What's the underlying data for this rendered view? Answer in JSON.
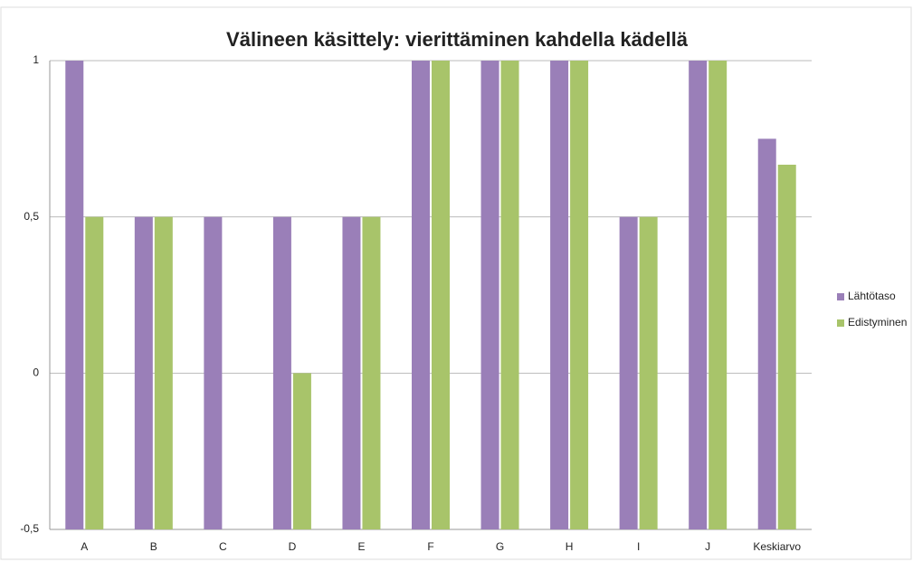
{
  "chart_data": {
    "type": "bar",
    "title": "Välineen käsittely: vierittäminen kahdella kädellä",
    "categories": [
      "A",
      "B",
      "C",
      "D",
      "E",
      "F",
      "G",
      "H",
      "I",
      "J",
      "Keskiarvo"
    ],
    "series": [
      {
        "name": "Lähtötaso",
        "color": "#9a7fb8",
        "values": [
          1,
          0.5,
          0.5,
          0.5,
          0.5,
          1,
          1,
          1,
          0.5,
          1,
          0.75
        ]
      },
      {
        "name": "Edistyminen",
        "color": "#a8c46a",
        "values": [
          0.5,
          0.5,
          null,
          0,
          0.5,
          1,
          1,
          1,
          0.5,
          1,
          0.667
        ]
      }
    ],
    "ylim": [
      -0.5,
      1
    ],
    "yticks": [
      {
        "value": -0.5,
        "label": "-0,5"
      },
      0,
      {
        "value": 0.5,
        "label": "0,5"
      },
      1
    ],
    "grid": true,
    "legend": "right"
  }
}
